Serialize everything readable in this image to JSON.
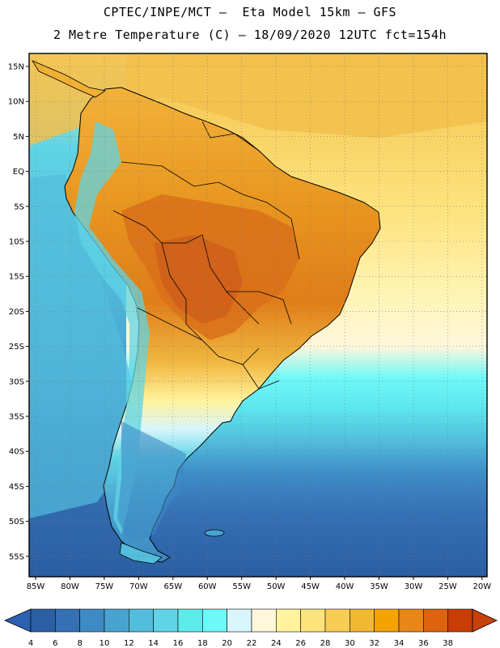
{
  "title": {
    "line1": "CPTEC/INPE/MCT –  Eta Model 15km – GFS",
    "line2": "2 Metre Temperature (C) – 18/09/2020 12UTC fct=154h"
  },
  "lat_labels": [
    "15N",
    "10N",
    "5N",
    "EQ",
    "5S",
    "10S",
    "15S",
    "20S",
    "25S",
    "30S",
    "35S",
    "40S",
    "45S",
    "50S",
    "55S"
  ],
  "lon_labels": [
    "85W",
    "80W",
    "75W",
    "70W",
    "65W",
    "60W",
    "55W",
    "50W",
    "45W",
    "40W",
    "35W",
    "30W",
    "25W",
    "20W"
  ],
  "colorbar": {
    "labels": [
      "4",
      "6",
      "8",
      "10",
      "12",
      "14",
      "16",
      "18",
      "20",
      "22",
      "24",
      "26",
      "28",
      "30",
      "32",
      "34",
      "36",
      "38"
    ],
    "colors": [
      "#2b5ea3",
      "#3570b5",
      "#3e8ac4",
      "#48a3d0",
      "#52bedc",
      "#5fd4e6",
      "#5bece9",
      "#6ff8f8",
      "#d8f6fb",
      "#fff7dc",
      "#fff39d",
      "#fde47a",
      "#f7cd55",
      "#f0b833",
      "#f4a300",
      "#e88718",
      "#dd630d",
      "#c83d05"
    ],
    "under_color": "#2b62b1",
    "over_color": "#c8410a"
  },
  "colors": {
    "ocean_warm": "#fde37e",
    "ocean_mild": "#fff6c0",
    "ocean_cool": "#5ce6ee",
    "ocean_cold": "#3e8ec8",
    "ocean_deep": "#2b5ea3",
    "land_hot": "#e58e20",
    "land_very_hot": "#d96f12",
    "land_warm": "#f0b035",
    "andes": "#6fd8e4",
    "patagonia": "#3a9ac8"
  }
}
